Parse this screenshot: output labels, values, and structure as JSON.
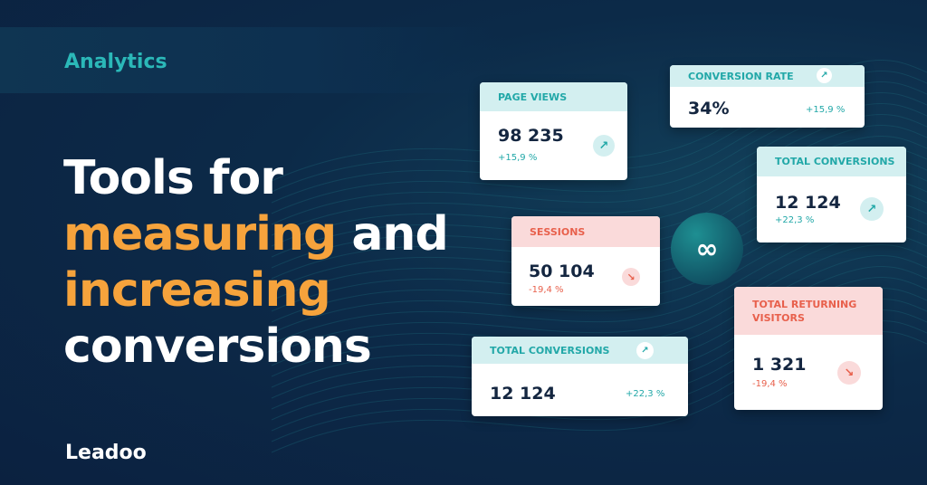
{
  "tag": "Analytics",
  "headline": {
    "line1": "Tools for",
    "line2_accent": "measuring",
    "line2_rest": " and",
    "line3_accent": "increasing",
    "line4": "conversions"
  },
  "logo": "Leadoo",
  "colors": {
    "background": "#0c2340",
    "accent_teal": "#2bb8b8",
    "accent_orange": "#f6a33c",
    "negative": "#e8604c"
  },
  "cards": [
    {
      "title": "PAGE VIEWS",
      "value": "98 235",
      "change": "+15,9 %",
      "trend": "up"
    },
    {
      "title": "CONVERSION RATE",
      "value": "34%",
      "change": "+15,9 %",
      "trend": "up"
    },
    {
      "title": "TOTAL CONVERSIONS",
      "value": "12 124",
      "change": "+22,3 %",
      "trend": "up"
    },
    {
      "title": "SESSIONS",
      "value": "50 104",
      "change": "-19,4 %",
      "trend": "down"
    },
    {
      "title": "TOTAL CONVERSIONS",
      "value": "12 124",
      "change": "+22,3 %",
      "trend": "up"
    },
    {
      "title": "TOTAL RETURNING VISITORS",
      "value": "1 321",
      "change": "-19,4 %",
      "trend": "down"
    }
  ],
  "icons": {
    "up": "arrow-up-right-icon",
    "down": "arrow-down-right-icon",
    "center": "infinity-logo-icon"
  }
}
